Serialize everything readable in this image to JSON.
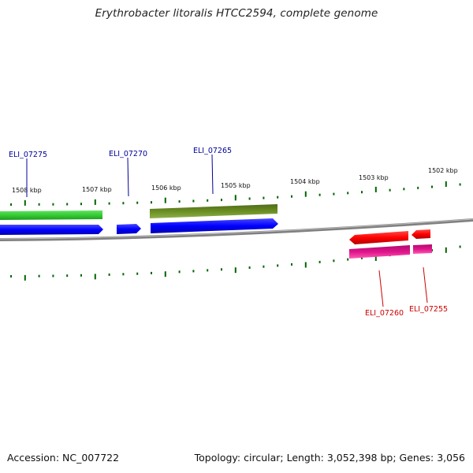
{
  "title": "Erythrobacter litoralis HTCC2594, complete genome",
  "footer": {
    "accession": "Accession: NC_007722",
    "summary": "Topology: circular; Length: 3,052,398 bp; Genes: 3,056"
  },
  "ruler": [
    "1508 kbp",
    "1507 kbp",
    "1506 kbp",
    "1505 kbp",
    "1504 kbp",
    "1503 kbp",
    "1502 kbp"
  ],
  "genes": [
    {
      "id": "ELI_07275",
      "strand": "+",
      "color": "#000099"
    },
    {
      "id": "ELI_07270",
      "strand": "+",
      "color": "#000099"
    },
    {
      "id": "ELI_07265",
      "strand": "+",
      "color": "#000099"
    },
    {
      "id": "ELI_07260",
      "strand": "-",
      "color": "#cc0000"
    },
    {
      "id": "ELI_07255",
      "strand": "-",
      "color": "#cc0000"
    }
  ],
  "colors": {
    "backbone": "#808080",
    "cds_forward": "#0000ff",
    "cds_reverse": "#ff0000",
    "gene_green": "#33cc33",
    "gene_olive": "#6b8e23",
    "gene_pink": "#e0148c",
    "ticks": "#006400"
  }
}
